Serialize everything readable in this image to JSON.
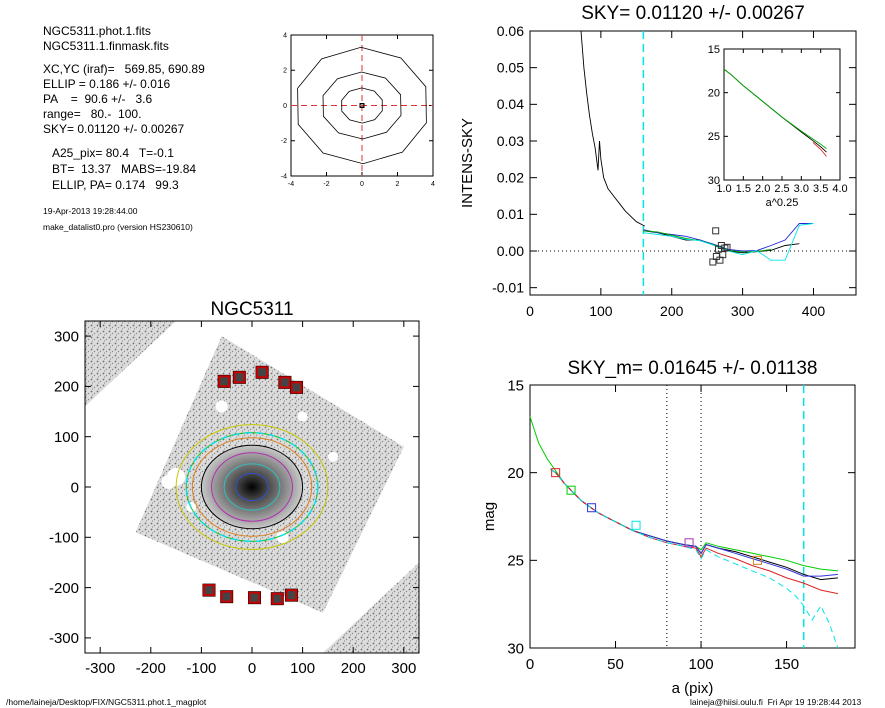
{
  "info": {
    "line1": "NGC5311.phot.1.fits",
    "line2": "NGC5311.1.finmask.fits",
    "line3": "XC,YC (iraf)=   569.85, 690.89",
    "line4": "ELLIP = 0.186 +/- 0.016",
    "line5": "PA    =  90.6 +/-   3.6",
    "line6": "range=   80.-  100.",
    "line7": "SKY= 0.01120 +/- 0.00267",
    "line8": "A25_pix= 80.4   T=-0.1",
    "line9": "BT=  13.37   MABS=-19.84",
    "line10": "ELLIP, PA= 0.174   99.3",
    "date": "19-Apr-2013 19:28:44.00",
    "program": "make_datalist0.pro (version HS230610)"
  },
  "footer": {
    "left": "/home/laineja/Desktop/FIX/NGC5311.phot.1_magplot",
    "right": "laineja@hiisi.oulu.fi  Fri Apr 19 19:28:44 2013"
  },
  "colors": {
    "sky_line": "#00e5e5",
    "mask_box": "#cc0000",
    "grid_dash": "#e03030"
  },
  "chart_data": [
    {
      "id": "contour",
      "type": "contour",
      "xlim": [
        -4,
        4
      ],
      "ylim": [
        -4,
        4
      ],
      "xticks": [
        -4,
        -2,
        0,
        2,
        4
      ],
      "yticks": [
        -4,
        -2,
        0,
        2,
        4
      ],
      "levels_semi_axes": [
        [
          0.12,
          0.1
        ],
        [
          1.2,
          1.0
        ],
        [
          2.3,
          1.9
        ],
        [
          3.8,
          3.3
        ]
      ]
    },
    {
      "id": "sky",
      "type": "line",
      "title": "SKY= 0.01120 +/- 0.00267",
      "xlabel": "",
      "ylabel": "INTENS-SKY",
      "xlim": [
        0,
        460
      ],
      "ylim": [
        -0.012,
        0.06
      ],
      "xticks": [
        0,
        100,
        200,
        300,
        400
      ],
      "yticks": [
        -0.01,
        0.0,
        0.01,
        0.02,
        0.03,
        0.04,
        0.05,
        0.06
      ],
      "ytick_labels": [
        "-0.01",
        "0.00",
        "0.01",
        "0.02",
        "0.03",
        "0.04",
        "0.05",
        "0.06"
      ],
      "vline": 160,
      "series": [
        {
          "color": "#000000",
          "x": [
            72,
            76,
            80,
            84,
            88,
            92,
            96,
            98,
            100,
            104,
            110,
            118,
            126,
            134,
            142,
            150,
            158,
            162
          ],
          "y": [
            0.06,
            0.05,
            0.043,
            0.037,
            0.032,
            0.028,
            0.022,
            0.03,
            0.025,
            0.02,
            0.017,
            0.015,
            0.013,
            0.011,
            0.0095,
            0.008,
            0.0072,
            0.0068
          ]
        },
        {
          "color": "#000000",
          "x": [
            160,
            180,
            200,
            220,
            240,
            260,
            280,
            300,
            320,
            340,
            360,
            380
          ],
          "y": [
            0.0055,
            0.005,
            0.004,
            0.003,
            0.003,
            0.0015,
            0.0,
            -0.0005,
            -0.0002,
            0.0002,
            0.0015,
            0.002
          ]
        },
        {
          "color": "#2222dd",
          "x": [
            160,
            180,
            200,
            220,
            240,
            260,
            280,
            300,
            320,
            340,
            360,
            380,
            400
          ],
          "y": [
            0.0058,
            0.005,
            0.0045,
            0.004,
            0.003,
            0.0018,
            0.0004,
            0.0,
            0.0001,
            0.0015,
            0.003,
            0.0075,
            0.0075
          ]
        },
        {
          "color": "#00aa00",
          "x": [
            160,
            180,
            200,
            220,
            240,
            260,
            280,
            300,
            320,
            340
          ],
          "y": [
            0.0055,
            0.0052,
            0.0043,
            0.0034,
            0.0028,
            0.0016,
            0.0002,
            -0.0003,
            -0.0001,
            0.0004
          ]
        },
        {
          "color": "#00e5e5",
          "x": [
            160,
            180,
            200,
            220,
            240,
            260,
            280,
            300,
            320,
            340,
            360,
            380,
            400
          ],
          "y": [
            0.005,
            0.0045,
            0.004,
            0.0032,
            0.0028,
            0.0015,
            0.0,
            -0.001,
            0.0001,
            -0.0025,
            -0.0025,
            0.007,
            0.0075
          ]
        }
      ],
      "squares": [
        {
          "x": 262,
          "y": 0.0055,
          "color": "#333333"
        },
        {
          "x": 258,
          "y": -0.003,
          "color": "#333333"
        },
        {
          "x": 263,
          "y": -0.0015,
          "color": "#333333"
        },
        {
          "x": 266,
          "y": 0.0005,
          "color": "#333333"
        },
        {
          "x": 270,
          "y": 0.0015,
          "color": "#333333"
        },
        {
          "x": 272,
          "y": -0.001,
          "color": "#333333"
        },
        {
          "x": 275,
          "y": 0.0008,
          "color": "#333333"
        },
        {
          "x": 278,
          "y": 0.001,
          "color": "#333333"
        },
        {
          "x": 268,
          "y": -0.0025,
          "color": "#333333"
        }
      ]
    },
    {
      "id": "inset",
      "type": "line",
      "xlim": [
        1.0,
        4.0
      ],
      "ylim": [
        15,
        30
      ],
      "xticks": [
        1.0,
        1.5,
        2.0,
        2.5,
        3.0,
        3.5,
        4.0
      ],
      "xtick_labels": [
        "1.0",
        "1.5",
        "2.0",
        "2.5",
        "3.0",
        "3.5",
        "4.0"
      ],
      "yticks": [
        15,
        20,
        25,
        30
      ],
      "xlabel": "a^0.25",
      "inverted_y": true,
      "series": [
        {
          "color": "#000000",
          "x": [
            1.0,
            1.2,
            1.5,
            2.0,
            2.5,
            3.0,
            3.3,
            3.5,
            3.65
          ],
          "y": [
            17.3,
            18.0,
            19.2,
            21.0,
            22.8,
            24.5,
            25.5,
            26.2,
            26.8
          ]
        },
        {
          "color": "#00aa00",
          "x": [
            1.0,
            1.2,
            1.5,
            2.0,
            2.5,
            3.0,
            3.3,
            3.5,
            3.65
          ],
          "y": [
            17.3,
            18.0,
            19.2,
            21.0,
            22.8,
            24.4,
            25.3,
            25.9,
            26.4
          ]
        },
        {
          "color": "#dd2222",
          "x": [
            3.3,
            3.5,
            3.65
          ],
          "y": [
            25.7,
            26.5,
            27.3
          ]
        }
      ]
    },
    {
      "id": "image",
      "type": "scatter",
      "title": "NGC5311",
      "xlim": [
        -330,
        330
      ],
      "ylim": [
        -330,
        330
      ],
      "xticks": [
        -300,
        -200,
        -100,
        0,
        100,
        200,
        300
      ],
      "yticks": [
        -300,
        -200,
        -100,
        0,
        100,
        200,
        300
      ],
      "ellipses": [
        {
          "a": 32,
          "b": 27,
          "color": "#3050d0"
        },
        {
          "a": 55,
          "b": 46,
          "color": "#30c0c0"
        },
        {
          "a": 80,
          "b": 68,
          "color": "#b030b0"
        },
        {
          "a": 100,
          "b": 83,
          "color": "#000000"
        },
        {
          "a": 118,
          "b": 98,
          "color": "#e08020"
        },
        {
          "a": 130,
          "b": 108,
          "color": "#20c020"
        },
        {
          "a": 150,
          "b": 124,
          "color": "#c8c800"
        }
      ],
      "sky_boxes": [
        {
          "x": -55,
          "y": 210
        },
        {
          "x": -25,
          "y": 218
        },
        {
          "x": 20,
          "y": 228
        },
        {
          "x": 65,
          "y": 208
        },
        {
          "x": 88,
          "y": 198
        },
        {
          "x": -85,
          "y": -205
        },
        {
          "x": -50,
          "y": -218
        },
        {
          "x": 5,
          "y": -220
        },
        {
          "x": 50,
          "y": -222
        },
        {
          "x": 78,
          "y": -215
        }
      ]
    },
    {
      "id": "profile",
      "type": "line",
      "title": "SKY_m=  0.01645 +/- 0.01138",
      "xlabel": "a (pix)",
      "ylabel": "mag",
      "xlim": [
        0,
        190
      ],
      "ylim": [
        15,
        30
      ],
      "inverted_y": true,
      "xticks": [
        0,
        50,
        100,
        150
      ],
      "yticks": [
        15,
        20,
        25,
        30
      ],
      "vlines_dotted": [
        80,
        100
      ],
      "vline_dashed": 160,
      "series": [
        {
          "color": "#00cc00",
          "x": [
            0,
            5,
            10,
            15,
            20,
            30,
            40,
            50,
            60,
            70,
            80,
            90,
            97,
            100,
            103,
            110,
            120,
            130,
            140,
            150,
            160,
            170,
            180
          ],
          "y": [
            16.8,
            18.3,
            19.2,
            19.9,
            20.6,
            21.6,
            22.3,
            22.8,
            23.3,
            23.6,
            23.9,
            24.1,
            24.2,
            24.4,
            24.0,
            24.2,
            24.4,
            24.6,
            24.8,
            25.0,
            25.3,
            25.5,
            25.6
          ]
        },
        {
          "color": "#000000",
          "x": [
            12,
            15,
            20,
            30,
            40,
            50,
            60,
            70,
            80,
            90,
            97,
            100,
            103,
            110,
            120,
            130,
            140,
            150,
            160,
            170,
            180
          ],
          "y": [
            19.8,
            20.0,
            20.6,
            21.6,
            22.3,
            22.8,
            23.3,
            23.6,
            23.9,
            24.1,
            24.2,
            24.6,
            24.1,
            24.3,
            24.5,
            24.8,
            25.1,
            25.4,
            25.8,
            26.1,
            26.0
          ]
        },
        {
          "color": "#3333dd",
          "x": [
            12,
            15,
            20,
            30,
            40,
            50,
            60,
            70,
            80,
            90,
            97,
            100,
            103,
            110,
            120,
            130,
            140,
            150,
            160,
            170,
            180
          ],
          "y": [
            19.8,
            20.0,
            20.6,
            21.6,
            22.3,
            22.8,
            23.3,
            23.6,
            23.9,
            24.1,
            24.2,
            24.6,
            24.1,
            24.3,
            24.6,
            24.9,
            25.2,
            25.5,
            25.9,
            25.9,
            25.8
          ]
        },
        {
          "color": "#dd2222",
          "x": [
            12,
            15,
            20,
            30,
            40,
            50,
            60,
            70,
            80,
            90,
            97,
            100,
            103,
            110,
            120,
            130,
            140,
            150,
            160,
            170,
            180
          ],
          "y": [
            19.8,
            20.0,
            20.6,
            21.6,
            22.3,
            22.8,
            23.3,
            23.7,
            24.0,
            24.2,
            24.3,
            24.8,
            24.3,
            24.6,
            24.9,
            25.3,
            25.6,
            26.0,
            26.3,
            26.7,
            26.9
          ]
        },
        {
          "color": "#00e5e5",
          "x": [
            12,
            15,
            20,
            30,
            40,
            50,
            60,
            70,
            80,
            90,
            97,
            100,
            103,
            110,
            120,
            130,
            140,
            150,
            155,
            160,
            165,
            170,
            175,
            180
          ],
          "y": [
            19.8,
            20.0,
            20.6,
            21.6,
            22.3,
            22.8,
            23.3,
            23.7,
            24.0,
            24.2,
            24.4,
            24.9,
            24.4,
            24.8,
            25.2,
            25.6,
            26.0,
            26.6,
            27.0,
            27.6,
            28.4,
            27.6,
            28.6,
            30.0
          ]
        }
      ],
      "squares": [
        {
          "x": 15,
          "y": 20.0,
          "color": "#dd2222"
        },
        {
          "x": 24,
          "y": 21.0,
          "color": "#00cc00"
        },
        {
          "x": 36,
          "y": 22.0,
          "color": "#3333dd"
        },
        {
          "x": 62,
          "y": 23.0,
          "color": "#00e5e5"
        },
        {
          "x": 93,
          "y": 24.0,
          "color": "#b030b0"
        },
        {
          "x": 133,
          "y": 25.0,
          "color": "#e08020"
        }
      ]
    }
  ]
}
